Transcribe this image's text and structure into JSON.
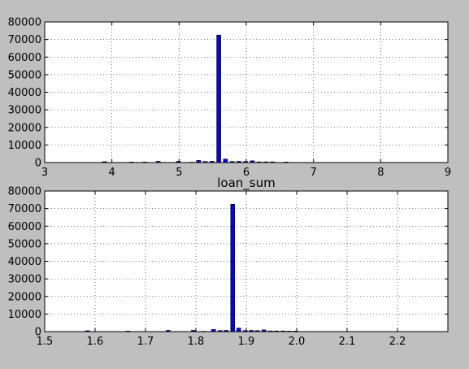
{
  "chart_data": [
    {
      "type": "bar",
      "title": "",
      "xlabel": "",
      "ylabel": "",
      "xlim": [
        3,
        9
      ],
      "ylim": [
        0,
        80000
      ],
      "grid": true,
      "bar_color": "#0000ff",
      "background": "#bfbfbf",
      "xticks": [
        3,
        4,
        5,
        6,
        7,
        8,
        9
      ],
      "yticks": [
        0,
        10000,
        20000,
        30000,
        40000,
        50000,
        60000,
        70000,
        80000
      ],
      "bar_width": 0.06,
      "x": [
        3.89,
        4.29,
        4.49,
        4.69,
        4.99,
        5.19,
        5.29,
        5.39,
        5.49,
        5.59,
        5.69,
        5.79,
        5.89,
        5.99,
        6.09,
        6.19,
        6.29,
        6.39,
        6.59
      ],
      "values": [
        500,
        300,
        300,
        700,
        700,
        200,
        1200,
        600,
        700,
        72500,
        2000,
        600,
        700,
        600,
        1000,
        400,
        400,
        400,
        300
      ]
    },
    {
      "type": "bar",
      "title": "loan_sum",
      "xlabel": "",
      "ylabel": "",
      "xlim": [
        1.5,
        2.3
      ],
      "ylim": [
        0,
        80000
      ],
      "grid": true,
      "bar_color": "#0000ff",
      "background": "#bfbfbf",
      "xticks": [
        1.5,
        1.6,
        1.7,
        1.8,
        1.9,
        2.0,
        2.1,
        2.2
      ],
      "yticks": [
        0,
        10000,
        20000,
        30000,
        40000,
        50000,
        60000,
        70000,
        80000
      ],
      "bar_width": 0.008,
      "x": [
        1.585,
        1.665,
        1.745,
        1.795,
        1.815,
        1.835,
        1.848,
        1.86,
        1.873,
        1.885,
        1.898,
        1.91,
        1.922,
        1.935,
        1.948,
        1.96,
        1.973,
        1.985,
        1.998
      ],
      "values": [
        500,
        300,
        700,
        700,
        200,
        1200,
        600,
        700,
        72500,
        2000,
        600,
        700,
        600,
        1000,
        400,
        400,
        400,
        300,
        300
      ]
    }
  ]
}
